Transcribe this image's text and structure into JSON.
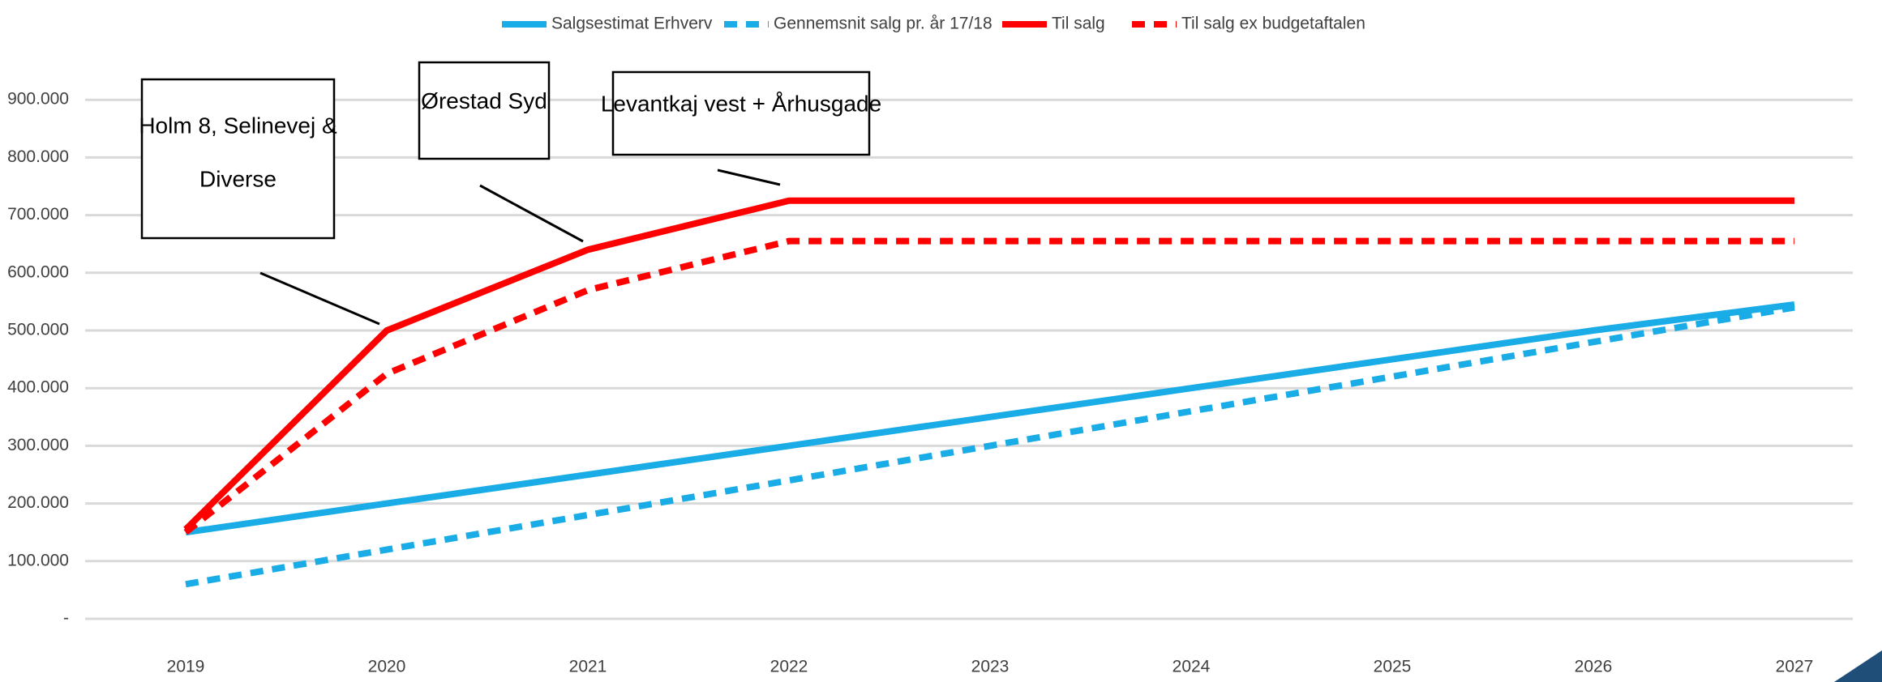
{
  "chart_data": {
    "type": "line",
    "categories": [
      "2019",
      "2020",
      "2021",
      "2022",
      "2023",
      "2024",
      "2025",
      "2026",
      "2027"
    ],
    "series": [
      {
        "name": "Salgsestimat Erhverv",
        "color": "#19ace6",
        "dashed": false,
        "values": [
          150000,
          200000,
          250000,
          300000,
          350000,
          400000,
          450000,
          500000,
          545000
        ]
      },
      {
        "name": "Gennemsnit salg pr. år 17/18",
        "color": "#19ace6",
        "dashed": true,
        "values": [
          60000,
          120000,
          180000,
          240000,
          300000,
          360000,
          420000,
          480000,
          540000
        ]
      },
      {
        "name": "Til salg",
        "color": "#ff0000",
        "dashed": false,
        "values": [
          155000,
          500000,
          640000,
          725000,
          725000,
          725000,
          725000,
          725000,
          725000
        ]
      },
      {
        "name": "Til salg ex budgetaftalen",
        "color": "#ff0000",
        "dashed": true,
        "values": [
          150000,
          425000,
          570000,
          655000,
          655000,
          655000,
          655000,
          655000,
          655000
        ]
      }
    ],
    "ylim": [
      0,
      1000000
    ],
    "yticks": [
      {
        "value": 0,
        "label": "-"
      },
      {
        "value": 100000,
        "label": "100.000"
      },
      {
        "value": 200000,
        "label": "200.000"
      },
      {
        "value": 300000,
        "label": "300.000"
      },
      {
        "value": 400000,
        "label": "400.000"
      },
      {
        "value": 500000,
        "label": "500.000"
      },
      {
        "value": 600000,
        "label": "600.000"
      },
      {
        "value": 700000,
        "label": "700.000"
      },
      {
        "value": 800000,
        "label": "800.000"
      },
      {
        "value": 900000,
        "label": "900.000"
      }
    ],
    "grid": true,
    "legend": "top",
    "annotations": [
      {
        "lines": [
          "Holm 8, Selinevej &",
          "Diverse"
        ]
      },
      {
        "lines": [
          "Ørestad Syd"
        ]
      },
      {
        "lines": [
          "Levantkaj vest +  Århusgade"
        ]
      }
    ]
  }
}
